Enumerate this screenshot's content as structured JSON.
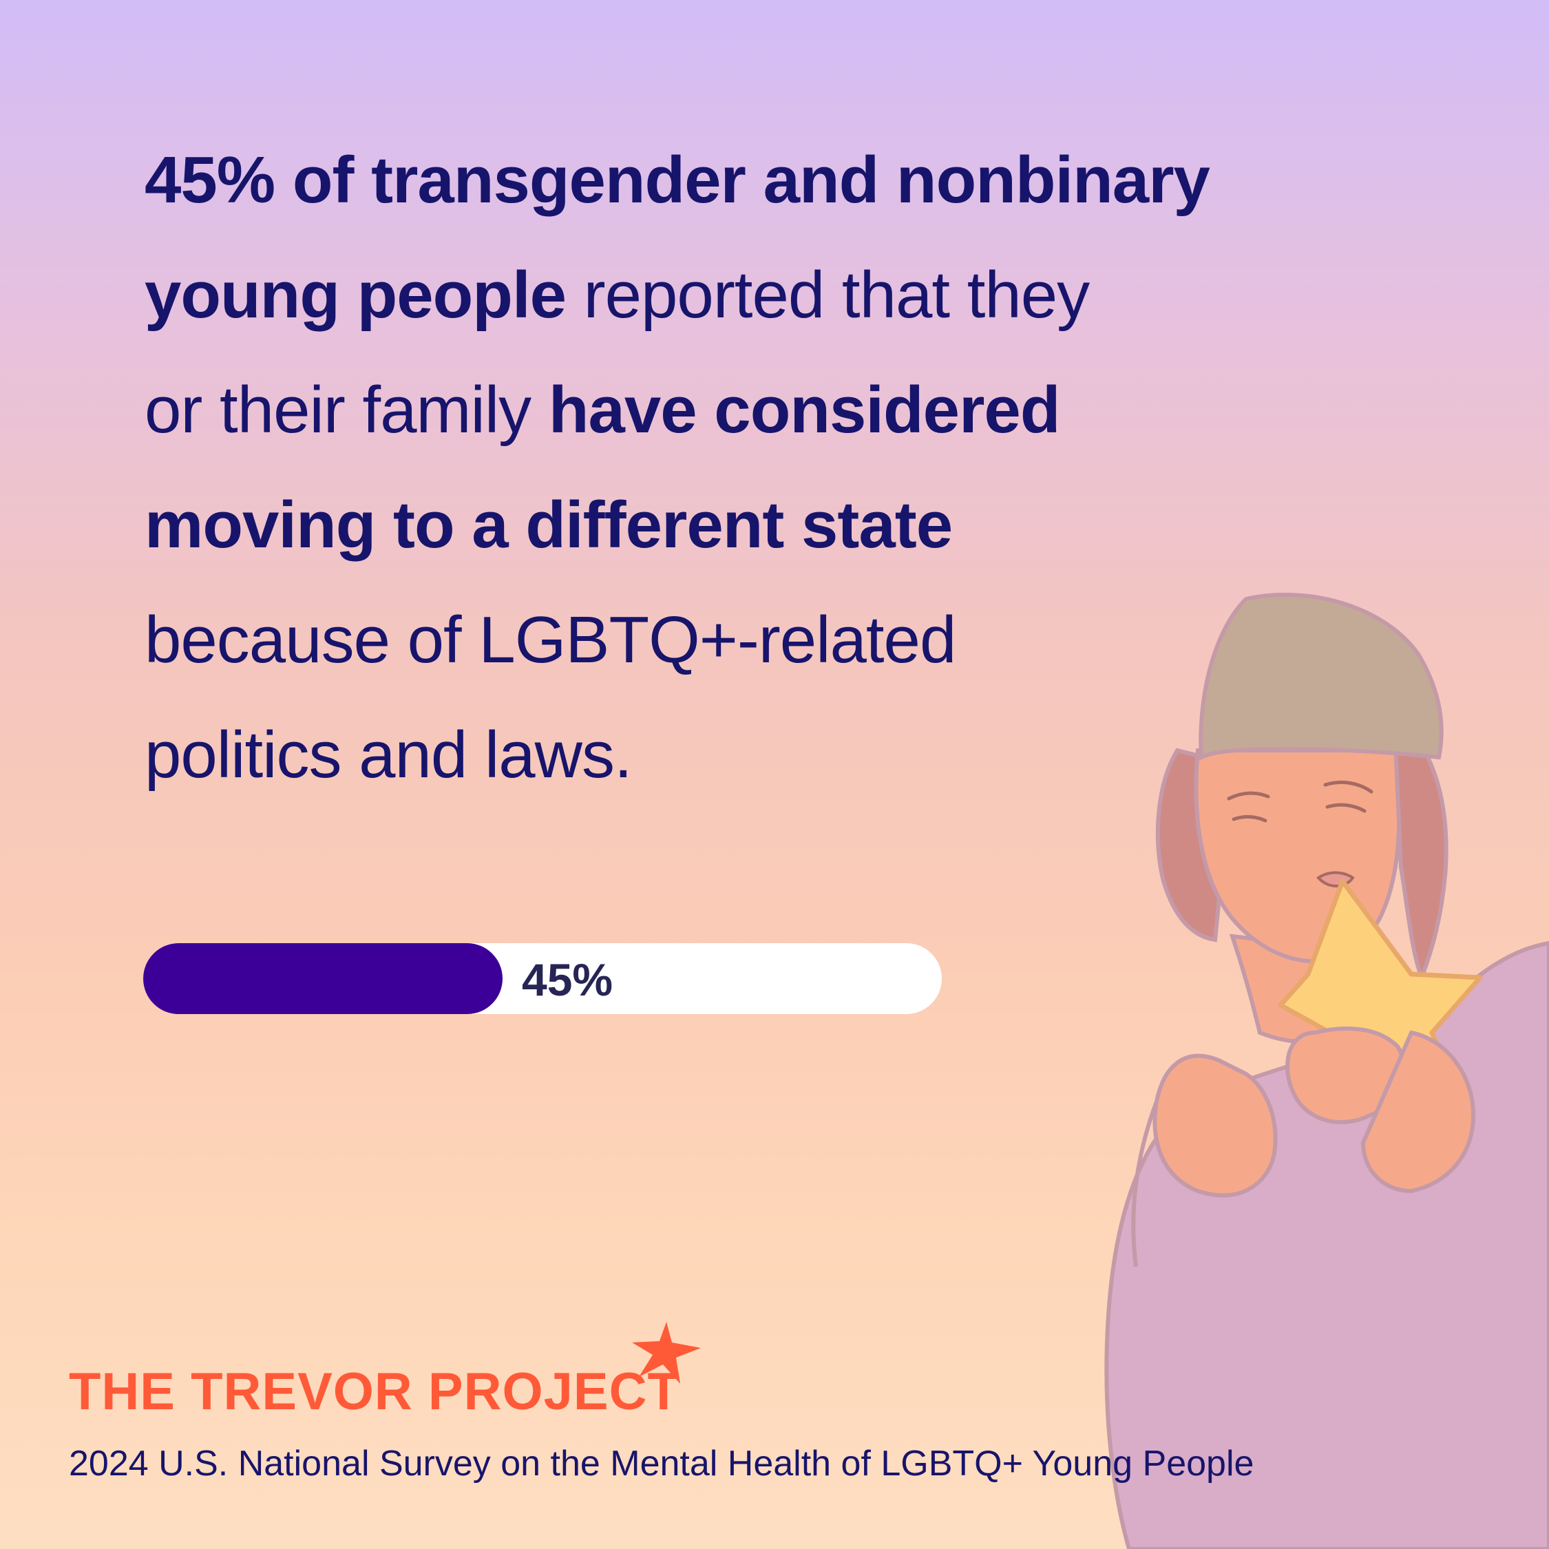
{
  "headline": {
    "line1_bold": "45% of transgender and nonbinary",
    "line2_bold": "young people",
    "line2_normal": " reported that they",
    "line3_normal": "or their family ",
    "line3_bold": "have considered",
    "line4_bold": "moving to a different state",
    "line5_normal": "because of LGBTQ+-related",
    "line6_normal": "politics and laws."
  },
  "progress": {
    "value_percent": 45,
    "label": "45%",
    "fill_color": "#3c0098",
    "track_color": "#ffffff"
  },
  "brand": {
    "logo_text": "THE TREVOR PROJECT",
    "logo_color": "#ff5a38",
    "logo_icon": "star-icon"
  },
  "source": "2024 U.S. National Survey on the Mental Health of LGBTQ+ Young People",
  "illustration": "person-holding-star-illustration"
}
